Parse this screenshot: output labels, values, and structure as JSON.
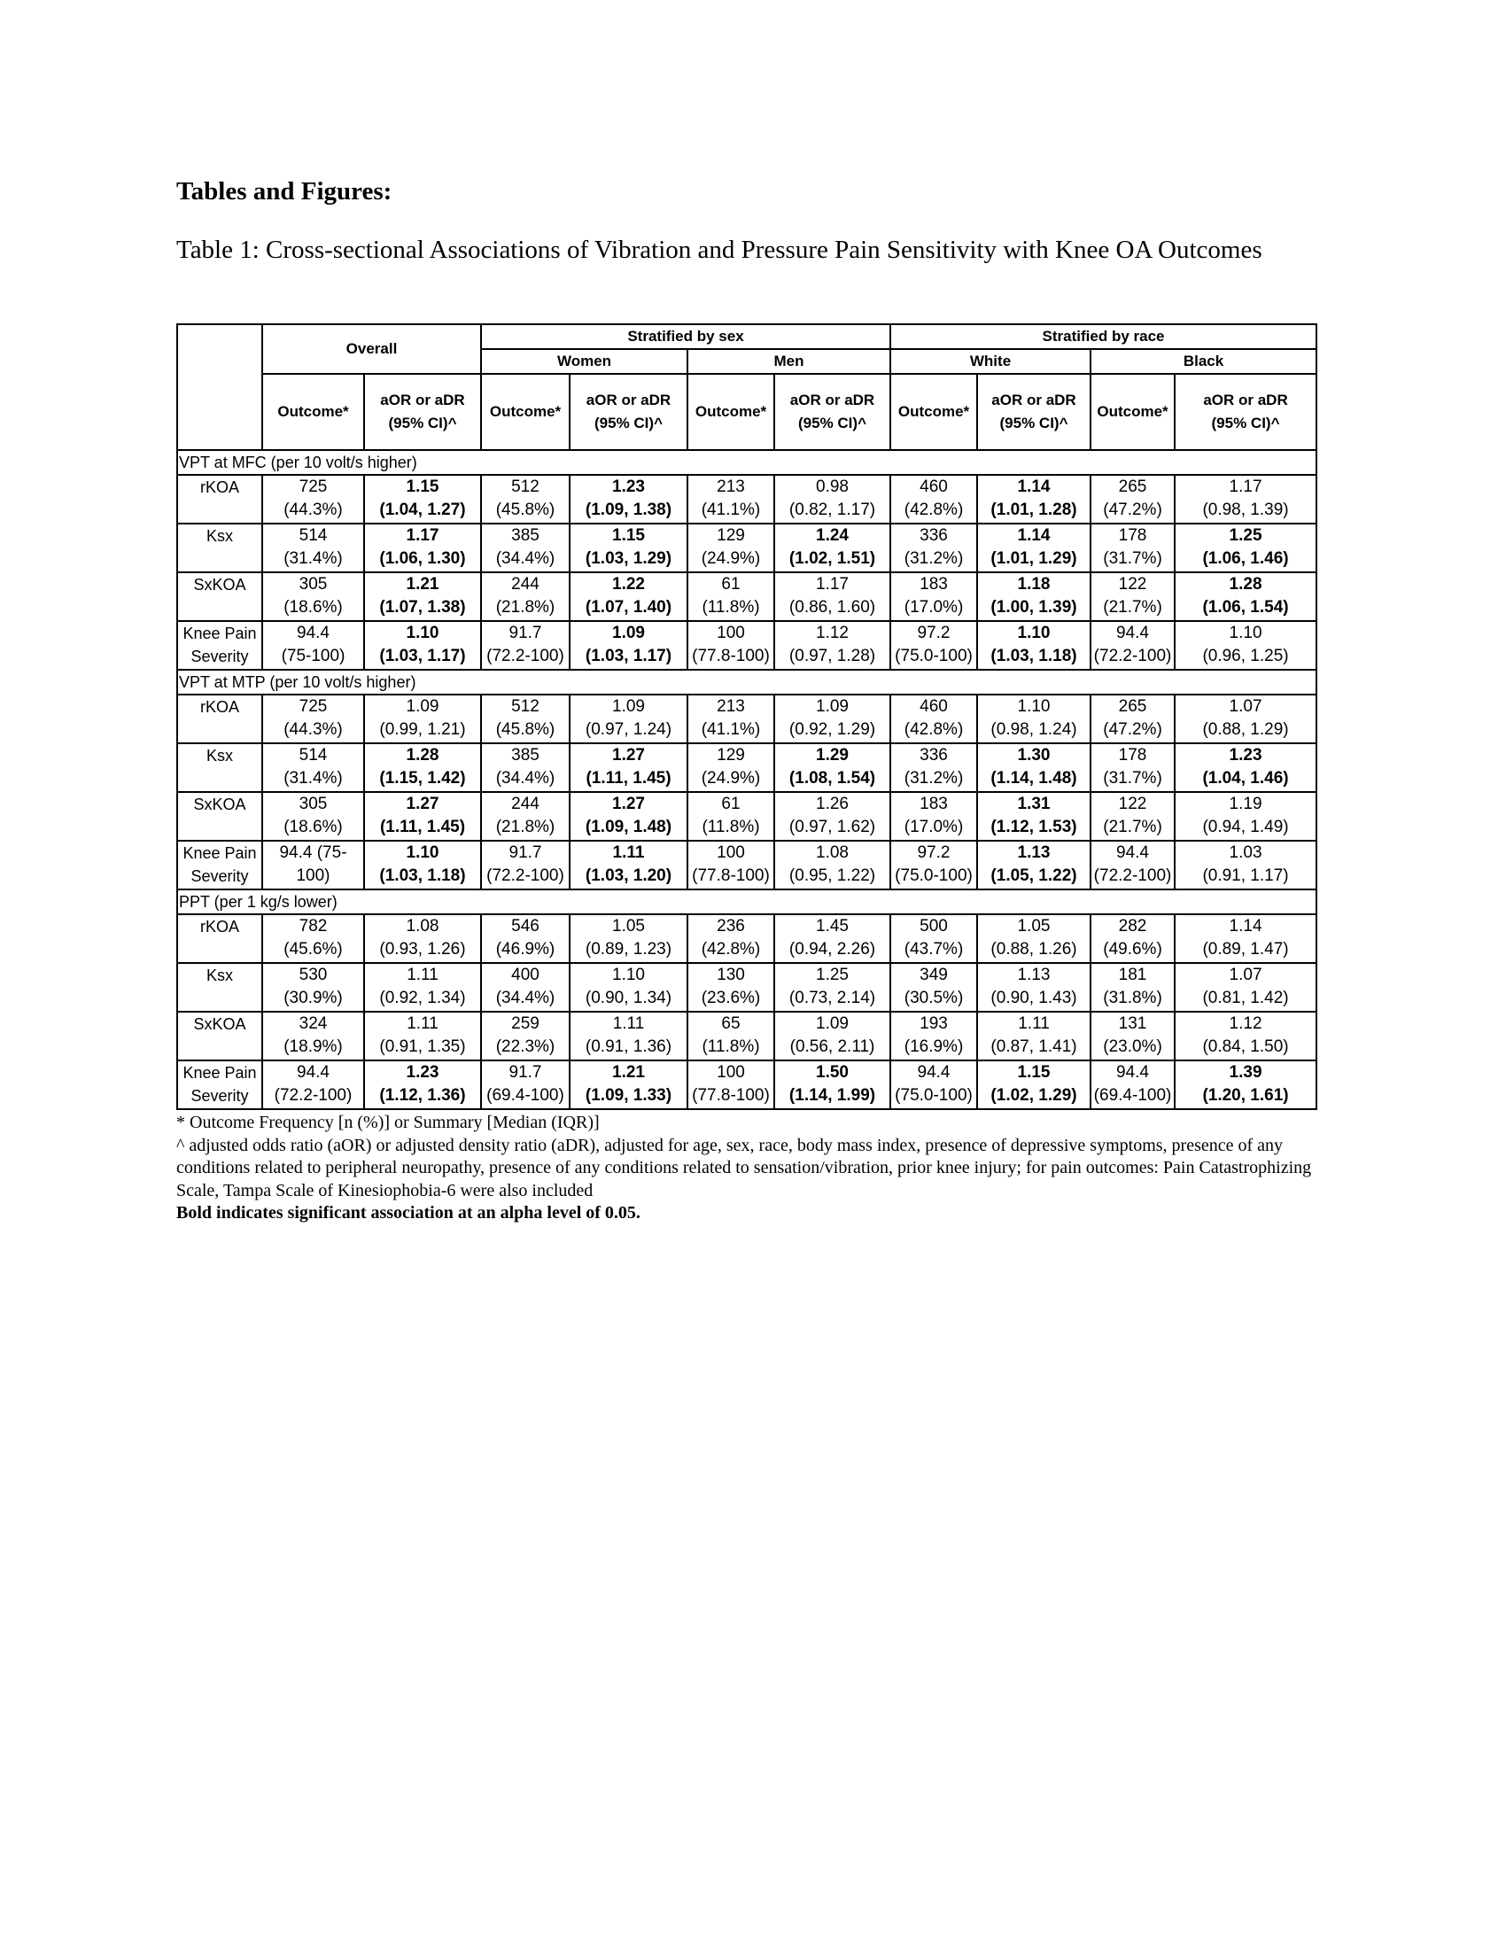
{
  "heading": "Tables and Figures:",
  "caption": "Table 1: Cross-sectional Associations of Vibration and Pressure Pain Sensitivity with Knee OA Outcomes",
  "header": {
    "overall": "Overall",
    "by_sex": "Stratified by sex",
    "by_race": "Stratified by race",
    "women": "Women",
    "men": "Men",
    "white": "White",
    "black": "Black",
    "outcome": "Outcome*",
    "aor_line1": "aOR or aDR",
    "aor_line2": "(95% CI)^"
  },
  "sections": [
    {
      "title": "VPT at MFC (per 10 volt/s higher)",
      "rows": [
        {
          "label": [
            "rKOA"
          ],
          "cells": [
            {
              "o": [
                "725",
                "(44.3%)"
              ],
              "e": "1.15",
              "ci": "(1.04, 1.27)",
              "bold": true
            },
            {
              "o": [
                "512",
                "(45.8%)"
              ],
              "e": "1.23",
              "ci": "(1.09, 1.38)",
              "bold": true
            },
            {
              "o": [
                "213",
                "(41.1%)"
              ],
              "e": "0.98",
              "ci": "(0.82, 1.17)",
              "bold": false
            },
            {
              "o": [
                "460",
                "(42.8%)"
              ],
              "e": "1.14",
              "ci": "(1.01, 1.28)",
              "bold": true
            },
            {
              "o": [
                "265",
                "(47.2%)"
              ],
              "e": "1.17",
              "ci": "(0.98, 1.39)",
              "bold": false
            }
          ]
        },
        {
          "label": [
            "Ksx"
          ],
          "cells": [
            {
              "o": [
                "514",
                "(31.4%)"
              ],
              "e": "1.17",
              "ci": "(1.06, 1.30)",
              "bold": true
            },
            {
              "o": [
                "385",
                "(34.4%)"
              ],
              "e": "1.15",
              "ci": "(1.03, 1.29)",
              "bold": true
            },
            {
              "o": [
                "129",
                "(24.9%)"
              ],
              "e": "1.24",
              "ci": "(1.02, 1.51)",
              "bold": true
            },
            {
              "o": [
                "336",
                "(31.2%)"
              ],
              "e": "1.14",
              "ci": "(1.01, 1.29)",
              "bold": true
            },
            {
              "o": [
                "178",
                "(31.7%)"
              ],
              "e": "1.25",
              "ci": "(1.06, 1.46)",
              "bold": true
            }
          ]
        },
        {
          "label": [
            "SxKOA"
          ],
          "cells": [
            {
              "o": [
                "305",
                "(18.6%)"
              ],
              "e": "1.21",
              "ci": "(1.07, 1.38)",
              "bold": true
            },
            {
              "o": [
                "244",
                "(21.8%)"
              ],
              "e": "1.22",
              "ci": "(1.07, 1.40)",
              "bold": true
            },
            {
              "o": [
                "61",
                "(11.8%)"
              ],
              "e": "1.17",
              "ci": "(0.86, 1.60)",
              "bold": false
            },
            {
              "o": [
                "183",
                "(17.0%)"
              ],
              "e": "1.18",
              "ci": "(1.00, 1.39)",
              "bold": true
            },
            {
              "o": [
                "122",
                "(21.7%)"
              ],
              "e": "1.28",
              "ci": "(1.06, 1.54)",
              "bold": true
            }
          ]
        },
        {
          "label": [
            "Knee Pain",
            "Severity"
          ],
          "cells": [
            {
              "o": [
                "94.4",
                "(75-100)"
              ],
              "e": "1.10",
              "ci": "(1.03, 1.17)",
              "bold": true
            },
            {
              "o": [
                "91.7",
                "(72.2-100)"
              ],
              "e": "1.09",
              "ci": "(1.03, 1.17)",
              "bold": true
            },
            {
              "o": [
                "100",
                "(77.8-100)"
              ],
              "e": "1.12",
              "ci": "(0.97, 1.28)",
              "bold": false
            },
            {
              "o": [
                "97.2",
                "(75.0-100)"
              ],
              "e": "1.10",
              "ci": "(1.03, 1.18)",
              "bold": true
            },
            {
              "o": [
                "94.4",
                "(72.2-100)"
              ],
              "e": "1.10",
              "ci": "(0.96, 1.25)",
              "bold": false
            }
          ]
        }
      ]
    },
    {
      "title": "VPT at MTP (per 10 volt/s higher)",
      "rows": [
        {
          "label": [
            "rKOA"
          ],
          "cells": [
            {
              "o": [
                "725",
                "(44.3%)"
              ],
              "e": "1.09",
              "ci": "(0.99, 1.21)",
              "bold": false
            },
            {
              "o": [
                "512",
                "(45.8%)"
              ],
              "e": "1.09",
              "ci": "(0.97, 1.24)",
              "bold": false
            },
            {
              "o": [
                "213",
                "(41.1%)"
              ],
              "e": "1.09",
              "ci": "(0.92, 1.29)",
              "bold": false
            },
            {
              "o": [
                "460",
                "(42.8%)"
              ],
              "e": "1.10",
              "ci": "(0.98, 1.24)",
              "bold": false
            },
            {
              "o": [
                "265",
                "(47.2%)"
              ],
              "e": "1.07",
              "ci": "(0.88, 1.29)",
              "bold": false
            }
          ]
        },
        {
          "label": [
            "Ksx"
          ],
          "cells": [
            {
              "o": [
                "514",
                "(31.4%)"
              ],
              "e": "1.28",
              "ci": "(1.15, 1.42)",
              "bold": true
            },
            {
              "o": [
                "385",
                "(34.4%)"
              ],
              "e": "1.27",
              "ci": "(1.11, 1.45)",
              "bold": true
            },
            {
              "o": [
                "129",
                "(24.9%)"
              ],
              "e": "1.29",
              "ci": "(1.08, 1.54)",
              "bold": true
            },
            {
              "o": [
                "336",
                "(31.2%)"
              ],
              "e": "1.30",
              "ci": "(1.14, 1.48)",
              "bold": true
            },
            {
              "o": [
                "178",
                "(31.7%)"
              ],
              "e": "1.23",
              "ci": "(1.04, 1.46)",
              "bold": true
            }
          ]
        },
        {
          "label": [
            "SxKOA"
          ],
          "cells": [
            {
              "o": [
                "305",
                "(18.6%)"
              ],
              "e": "1.27",
              "ci": "(1.11, 1.45)",
              "bold": true
            },
            {
              "o": [
                "244",
                "(21.8%)"
              ],
              "e": "1.27",
              "ci": "(1.09, 1.48)",
              "bold": true
            },
            {
              "o": [
                "61",
                "(11.8%)"
              ],
              "e": "1.26",
              "ci": "(0.97, 1.62)",
              "bold": false
            },
            {
              "o": [
                "183",
                "(17.0%)"
              ],
              "e": "1.31",
              "ci": "(1.12, 1.53)",
              "bold": true
            },
            {
              "o": [
                "122",
                "(21.7%)"
              ],
              "e": "1.19",
              "ci": "(0.94, 1.49)",
              "bold": false
            }
          ]
        },
        {
          "label": [
            "Knee Pain",
            "Severity"
          ],
          "cells": [
            {
              "o": [
                "94.4 (75-",
                "100)"
              ],
              "e": "1.10",
              "ci": "(1.03, 1.18)",
              "bold": true
            },
            {
              "o": [
                "91.7",
                "(72.2-100)"
              ],
              "e": "1.11",
              "ci": "(1.03, 1.20)",
              "bold": true
            },
            {
              "o": [
                "100",
                "(77.8-100)"
              ],
              "e": "1.08",
              "ci": "(0.95, 1.22)",
              "bold": false
            },
            {
              "o": [
                "97.2",
                "(75.0-100)"
              ],
              "e": "1.13",
              "ci": "(1.05, 1.22)",
              "bold": true
            },
            {
              "o": [
                "94.4",
                "(72.2-100)"
              ],
              "e": "1.03",
              "ci": "(0.91, 1.17)",
              "bold": false
            }
          ]
        }
      ]
    },
    {
      "title": "PPT (per 1 kg/s lower)",
      "rows": [
        {
          "label": [
            "rKOA"
          ],
          "cells": [
            {
              "o": [
                "782",
                "(45.6%)"
              ],
              "e": "1.08",
              "ci": "(0.93, 1.26)",
              "bold": false
            },
            {
              "o": [
                "546",
                "(46.9%)"
              ],
              "e": "1.05",
              "ci": "(0.89, 1.23)",
              "bold": false
            },
            {
              "o": [
                "236",
                "(42.8%)"
              ],
              "e": "1.45",
              "ci": "(0.94, 2.26)",
              "bold": false
            },
            {
              "o": [
                "500",
                "(43.7%)"
              ],
              "e": "1.05",
              "ci": "(0.88, 1.26)",
              "bold": false
            },
            {
              "o": [
                "282",
                "(49.6%)"
              ],
              "e": "1.14",
              "ci": "(0.89, 1.47)",
              "bold": false
            }
          ]
        },
        {
          "label": [
            "Ksx"
          ],
          "cells": [
            {
              "o": [
                "530",
                "(30.9%)"
              ],
              "e": "1.11",
              "ci": "(0.92, 1.34)",
              "bold": false
            },
            {
              "o": [
                "400",
                "(34.4%)"
              ],
              "e": "1.10",
              "ci": "(0.90, 1.34)",
              "bold": false
            },
            {
              "o": [
                "130",
                "(23.6%)"
              ],
              "e": "1.25",
              "ci": "(0.73, 2.14)",
              "bold": false
            },
            {
              "o": [
                "349",
                "(30.5%)"
              ],
              "e": "1.13",
              "ci": "(0.90, 1.43)",
              "bold": false
            },
            {
              "o": [
                "181",
                "(31.8%)"
              ],
              "e": "1.07",
              "ci": "(0.81, 1.42)",
              "bold": false
            }
          ]
        },
        {
          "label": [
            "SxKOA"
          ],
          "cells": [
            {
              "o": [
                "324",
                "(18.9%)"
              ],
              "e": "1.11",
              "ci": "(0.91, 1.35)",
              "bold": false
            },
            {
              "o": [
                "259",
                "(22.3%)"
              ],
              "e": "1.11",
              "ci": "(0.91, 1.36)",
              "bold": false
            },
            {
              "o": [
                "65",
                "(11.8%)"
              ],
              "e": "1.09",
              "ci": "(0.56, 2.11)",
              "bold": false
            },
            {
              "o": [
                "193",
                "(16.9%)"
              ],
              "e": "1.11",
              "ci": "(0.87, 1.41)",
              "bold": false
            },
            {
              "o": [
                "131",
                "(23.0%)"
              ],
              "e": "1.12",
              "ci": "(0.84, 1.50)",
              "bold": false
            }
          ]
        },
        {
          "label": [
            "Knee Pain",
            "Severity"
          ],
          "cells": [
            {
              "o": [
                "94.4",
                "(72.2-100)"
              ],
              "e": "1.23",
              "ci": "(1.12, 1.36)",
              "bold": true
            },
            {
              "o": [
                "91.7",
                "(69.4-100)"
              ],
              "e": "1.21",
              "ci": "(1.09, 1.33)",
              "bold": true
            },
            {
              "o": [
                "100",
                "(77.8-100)"
              ],
              "e": "1.50",
              "ci": "(1.14, 1.99)",
              "bold": true
            },
            {
              "o": [
                "94.4",
                "(75.0-100)"
              ],
              "e": "1.15",
              "ci": "(1.02, 1.29)",
              "bold": true
            },
            {
              "o": [
                "94.4",
                "(69.4-100)"
              ],
              "e": "1.39",
              "ci": "(1.20, 1.61)",
              "bold": true
            }
          ]
        }
      ]
    }
  ],
  "footnotes": {
    "outcome": "* Outcome Frequency [n (%)] or Summary [Median (IQR)]",
    "adjusted": "^ adjusted odds ratio (aOR) or adjusted density ratio (aDR), adjusted for age, sex, race, body mass index, presence of depressive symptoms, presence of any conditions related to peripheral neuropathy, presence of any conditions related to sensation/vibration, prior knee injury; for pain outcomes: Pain Catastrophizing Scale, Tampa Scale of Kinesiophobia-6 were also included",
    "bold_note": "Bold indicates significant association at an alpha level of 0.05."
  }
}
